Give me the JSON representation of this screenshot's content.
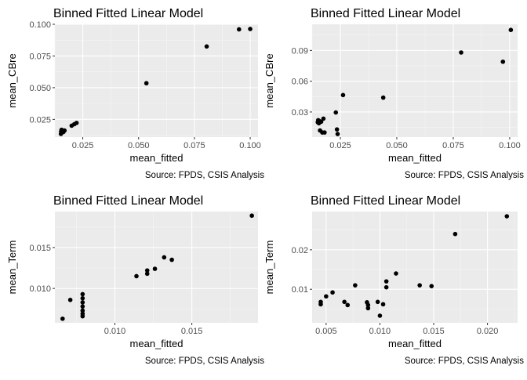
{
  "chart_data": [
    {
      "type": "scatter",
      "title": "Binned Fitted Linear Model",
      "xlabel": "mean_fitted",
      "ylabel": "mean_CBre",
      "caption": "Source: FPDS, CSIS Analysis",
      "xlim": [
        0.0125,
        0.1035
      ],
      "ylim": [
        0.011,
        0.1
      ],
      "x_ticks": [
        0.025,
        0.05,
        0.075,
        0.1
      ],
      "x_tick_labels": [
        "0.025",
        "0.050",
        "0.075",
        "0.100"
      ],
      "y_ticks": [
        0.025,
        0.05,
        0.075,
        0.1
      ],
      "y_tick_labels": [
        "0.025",
        "0.050",
        "0.075",
        "0.100"
      ],
      "grid": true,
      "points": [
        {
          "x": 0.0152,
          "y": 0.0135
        },
        {
          "x": 0.0153,
          "y": 0.0155
        },
        {
          "x": 0.0155,
          "y": 0.0168
        },
        {
          "x": 0.0163,
          "y": 0.015
        },
        {
          "x": 0.0168,
          "y": 0.0162
        },
        {
          "x": 0.02,
          "y": 0.02
        },
        {
          "x": 0.0212,
          "y": 0.0212
        },
        {
          "x": 0.0222,
          "y": 0.0222
        },
        {
          "x": 0.0535,
          "y": 0.0535
        },
        {
          "x": 0.0805,
          "y": 0.0825
        },
        {
          "x": 0.095,
          "y": 0.096
        },
        {
          "x": 0.1,
          "y": 0.0963
        }
      ]
    },
    {
      "type": "scatter",
      "title": "Binned Fitted Linear Model",
      "xlabel": "mean_fitted",
      "ylabel": "mean_CBre",
      "caption": "Source: FPDS, CSIS Analysis",
      "xlim": [
        0.0125,
        0.1035
      ],
      "ylim": [
        0.0055,
        0.1155
      ],
      "x_ticks": [
        0.025,
        0.05,
        0.075,
        0.1
      ],
      "x_tick_labels": [
        "0.025",
        "0.050",
        "0.075",
        "0.100"
      ],
      "y_ticks": [
        0.03,
        0.06,
        0.09
      ],
      "y_tick_labels": [
        "0.03",
        "0.06",
        "0.09"
      ],
      "grid": true,
      "points": [
        {
          "x": 0.015,
          "y": 0.02
        },
        {
          "x": 0.0152,
          "y": 0.022
        },
        {
          "x": 0.0155,
          "y": 0.019
        },
        {
          "x": 0.0158,
          "y": 0.021
        },
        {
          "x": 0.016,
          "y": 0.012
        },
        {
          "x": 0.0165,
          "y": 0.0205
        },
        {
          "x": 0.017,
          "y": 0.01
        },
        {
          "x": 0.0175,
          "y": 0.0235
        },
        {
          "x": 0.018,
          "y": 0.01
        },
        {
          "x": 0.023,
          "y": 0.0295
        },
        {
          "x": 0.0235,
          "y": 0.013
        },
        {
          "x": 0.0238,
          "y": 0.0085
        },
        {
          "x": 0.0262,
          "y": 0.0465
        },
        {
          "x": 0.044,
          "y": 0.044
        },
        {
          "x": 0.0785,
          "y": 0.088
        },
        {
          "x": 0.097,
          "y": 0.079
        },
        {
          "x": 0.1005,
          "y": 0.11
        }
      ]
    },
    {
      "type": "scatter",
      "title": "Binned Fitted Linear Model",
      "xlabel": "mean_fitted",
      "ylabel": "mean_Term",
      "caption": "Source: FPDS, CSIS Analysis",
      "xlim": [
        0.0061,
        0.0193
      ],
      "ylim": [
        0.0058,
        0.0194
      ],
      "x_ticks": [
        0.01,
        0.015
      ],
      "x_tick_labels": [
        "0.010",
        "0.015"
      ],
      "y_ticks": [
        0.01,
        0.015
      ],
      "y_tick_labels": [
        "0.010",
        "0.015"
      ],
      "grid": true,
      "points": [
        {
          "x": 0.0066,
          "y": 0.0063
        },
        {
          "x": 0.0071,
          "y": 0.0086
        },
        {
          "x": 0.0079,
          "y": 0.0093
        },
        {
          "x": 0.0079,
          "y": 0.0088
        },
        {
          "x": 0.0079,
          "y": 0.0083
        },
        {
          "x": 0.0079,
          "y": 0.0078
        },
        {
          "x": 0.0079,
          "y": 0.0073
        },
        {
          "x": 0.0079,
          "y": 0.0069
        },
        {
          "x": 0.0079,
          "y": 0.0066
        },
        {
          "x": 0.0114,
          "y": 0.0115
        },
        {
          "x": 0.0121,
          "y": 0.0118
        },
        {
          "x": 0.0121,
          "y": 0.0122
        },
        {
          "x": 0.0126,
          "y": 0.0124
        },
        {
          "x": 0.0132,
          "y": 0.0138
        },
        {
          "x": 0.0137,
          "y": 0.0135
        },
        {
          "x": 0.0189,
          "y": 0.0189
        }
      ]
    },
    {
      "type": "scatter",
      "title": "Binned Fitted Linear Model",
      "xlabel": "mean_fitted",
      "ylabel": "mean_Term",
      "caption": "Source: FPDS, CSIS Analysis",
      "xlim": [
        0.0037,
        0.0228
      ],
      "ylim": [
        0.0015,
        0.0297
      ],
      "x_ticks": [
        0.005,
        0.01,
        0.015,
        0.02
      ],
      "x_tick_labels": [
        "0.005",
        "0.010",
        "0.015",
        "0.020"
      ],
      "y_ticks": [
        0.01,
        0.02
      ],
      "y_tick_labels": [
        "0.01",
        "0.02"
      ],
      "grid": true,
      "points": [
        {
          "x": 0.0045,
          "y": 0.0062
        },
        {
          "x": 0.0045,
          "y": 0.0068
        },
        {
          "x": 0.005,
          "y": 0.0082
        },
        {
          "x": 0.0056,
          "y": 0.0092
        },
        {
          "x": 0.0067,
          "y": 0.0068
        },
        {
          "x": 0.007,
          "y": 0.006
        },
        {
          "x": 0.0077,
          "y": 0.011
        },
        {
          "x": 0.0088,
          "y": 0.0067
        },
        {
          "x": 0.0089,
          "y": 0.006
        },
        {
          "x": 0.0089,
          "y": 0.0052
        },
        {
          "x": 0.0098,
          "y": 0.0068
        },
        {
          "x": 0.01,
          "y": 0.0033
        },
        {
          "x": 0.0103,
          "y": 0.0062
        },
        {
          "x": 0.0106,
          "y": 0.012
        },
        {
          "x": 0.0106,
          "y": 0.0105
        },
        {
          "x": 0.0115,
          "y": 0.014
        },
        {
          "x": 0.0137,
          "y": 0.011
        },
        {
          "x": 0.0148,
          "y": 0.0108
        },
        {
          "x": 0.017,
          "y": 0.024
        },
        {
          "x": 0.0218,
          "y": 0.0285
        }
      ]
    }
  ]
}
